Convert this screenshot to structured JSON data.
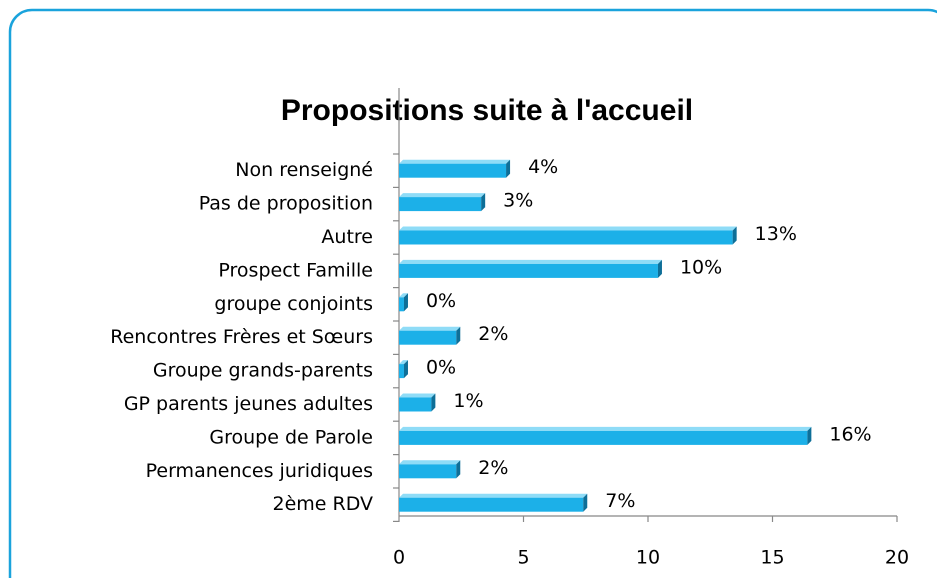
{
  "chart_data": {
    "type": "bar",
    "orientation": "horizontal",
    "title": "Propositions suite à l'accueil",
    "categories": [
      "Non renseigné",
      "Pas de proposition",
      "Autre",
      "Prospect Famille",
      "groupe conjoints",
      "Rencontres Frères et Sœurs",
      "Groupe grands-parents",
      "GP parents jeunes adultes",
      "Groupe de Parole",
      "Permanences juridiques",
      "2ème RDV"
    ],
    "values": [
      4.3,
      3.3,
      13.4,
      10.4,
      0.2,
      2.3,
      0.2,
      1.3,
      16.4,
      2.3,
      7.4
    ],
    "value_labels": [
      "4%",
      "3%",
      "13%",
      "10%",
      "0%",
      "2%",
      "0%",
      "1%",
      "16%",
      "2%",
      "7%"
    ],
    "color": "#1cb0e8",
    "xlim": [
      0,
      20
    ],
    "xticks": [
      0,
      5,
      10,
      15,
      20
    ]
  }
}
